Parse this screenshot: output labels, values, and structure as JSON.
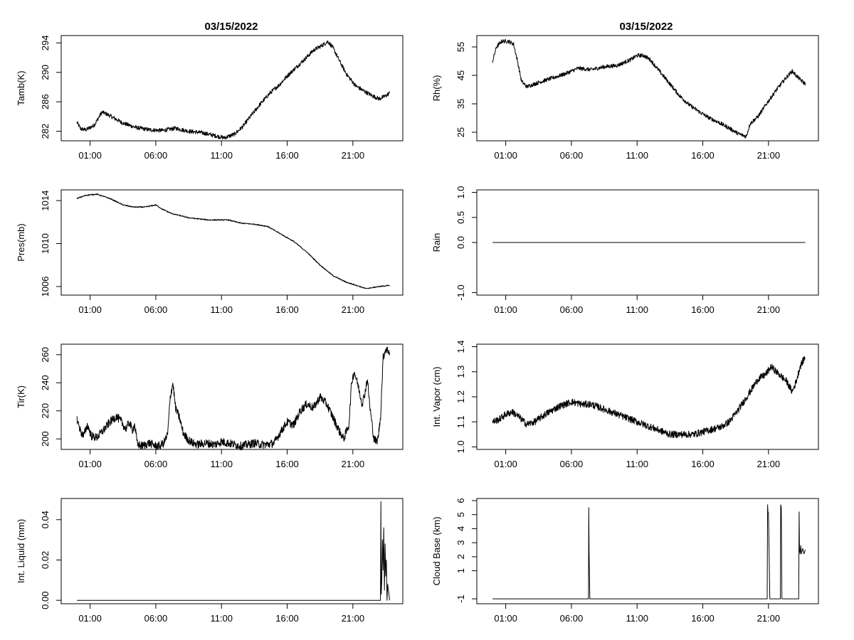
{
  "page": {
    "titles": [
      "03/15/2022",
      "03/15/2022"
    ],
    "x_ticks": [
      "01:00",
      "06:00",
      "11:00",
      "16:00",
      "21:00"
    ],
    "line_color": "#000000",
    "background": "#ffffff"
  },
  "chart_data": [
    {
      "id": "tamb",
      "type": "line",
      "ylabel": "Tamb(K)",
      "ylim": [
        280.7,
        295
      ],
      "yticks": [
        282,
        286,
        290,
        294
      ],
      "x_hours": [
        0,
        0.3,
        0.7,
        1.3,
        1.9,
        2.3,
        2.8,
        3.5,
        4.5,
        5.5,
        6.5,
        7.5,
        8.5,
        9.5,
        10.5,
        11.2,
        12,
        12.6,
        13.2,
        14,
        14.7,
        15.4,
        16,
        16.7,
        17.4,
        18,
        18.6,
        19.1,
        19.5,
        20,
        20.5,
        21.2,
        21.8,
        22.5,
        23,
        23.5,
        23.8
      ],
      "y": [
        283.2,
        282.3,
        282.2,
        282.8,
        284.6,
        284.3,
        283.8,
        283.1,
        282.5,
        282.2,
        282.1,
        282.4,
        282.0,
        281.8,
        281.4,
        281.1,
        281.6,
        282.6,
        284.0,
        285.8,
        287.2,
        288.3,
        289.5,
        290.7,
        291.9,
        293.0,
        293.6,
        294.2,
        293.3,
        291.5,
        289.8,
        288.2,
        287.5,
        286.8,
        286.4,
        286.8,
        287.2
      ],
      "noise": 0.28
    },
    {
      "id": "rh",
      "type": "line",
      "ylabel": "Rh(%)",
      "ylim": [
        22,
        59
      ],
      "yticks": [
        25,
        35,
        45,
        55
      ],
      "x_hours": [
        0,
        0.3,
        0.7,
        1.2,
        1.6,
        1.9,
        2.2,
        2.6,
        3.5,
        4.5,
        5.5,
        6.5,
        7.5,
        8.5,
        9.5,
        10.5,
        11,
        11.5,
        12,
        12.7,
        13.5,
        14.2,
        15,
        15.8,
        16.5,
        17.2,
        18,
        18.7,
        19.3,
        19.6,
        20.2,
        21,
        21.7,
        22.4,
        22.8,
        23.3,
        23.8
      ],
      "y": [
        50,
        55,
        57,
        57,
        56,
        50,
        43,
        41,
        42.5,
        44,
        45.5,
        47.5,
        47,
        48,
        48.5,
        50.5,
        52,
        52,
        50.5,
        46.5,
        42,
        38,
        34.5,
        32,
        30,
        28.5,
        26.5,
        24.5,
        23.5,
        28,
        30.5,
        36,
        40.5,
        44.5,
        46.5,
        44,
        42
      ],
      "noise": 0.7
    },
    {
      "id": "pres",
      "type": "line",
      "ylabel": "Pres(mb)",
      "ylim": [
        1005.2,
        1015.0
      ],
      "yticks": [
        1006,
        1010,
        1014
      ],
      "x_hours": [
        0,
        0.7,
        1.5,
        2.5,
        3.5,
        4.3,
        5.2,
        6,
        6.5,
        7.2,
        8.5,
        10,
        11.5,
        12.5,
        13.5,
        14.5,
        15.5,
        16.5,
        17.5,
        18.5,
        19.5,
        20.5,
        21.3,
        22,
        22.5,
        23,
        23.8
      ],
      "y": [
        1014.2,
        1014.5,
        1014.6,
        1014.2,
        1013.6,
        1013.4,
        1013.4,
        1013.6,
        1013.2,
        1012.8,
        1012.4,
        1012.2,
        1012.2,
        1011.9,
        1011.8,
        1011.6,
        1010.9,
        1010.2,
        1009.2,
        1008.0,
        1007.0,
        1006.4,
        1006.1,
        1005.8,
        1005.9,
        1006.0,
        1006.1
      ],
      "noise": 0.05
    },
    {
      "id": "rain",
      "type": "line",
      "ylabel": "Rain",
      "ylim": [
        -1.05,
        1.05
      ],
      "yticks": [
        -1.0,
        0.0,
        0.5,
        1.0
      ],
      "x_hours": [
        0,
        23.8
      ],
      "y": [
        0,
        0
      ],
      "noise": 0
    },
    {
      "id": "tir",
      "type": "line",
      "ylabel": "Tir(K)",
      "ylim": [
        192.5,
        267.5
      ],
      "yticks": [
        200,
        220,
        240,
        260
      ],
      "x_hours": [
        0,
        0.3,
        0.5,
        0.8,
        1.1,
        1.5,
        2,
        2.5,
        3,
        3.4,
        3.7,
        4,
        4.2,
        4.4,
        4.6,
        5,
        5.5,
        6,
        6.3,
        6.6,
        6.9,
        7.1,
        7.3,
        7.5,
        7.8,
        8.1,
        8.4,
        8.8,
        9.2,
        9.8,
        10.5,
        11,
        11.5,
        12,
        12.5,
        13,
        13.5,
        14,
        14.5,
        15,
        15.5,
        16,
        16.5,
        17,
        17.5,
        18,
        18.5,
        19,
        19.5,
        20,
        20.3,
        20.7,
        20.9,
        21.1,
        21.4,
        21.7,
        21.9,
        22.1,
        22.3,
        22.6,
        22.8,
        22.9,
        23.1,
        23.3,
        23.5,
        23.8
      ],
      "y": [
        214,
        205,
        202,
        210,
        202,
        201,
        206,
        212,
        216,
        212,
        207,
        212,
        206,
        210,
        196,
        195,
        197,
        195,
        195,
        197,
        203,
        230,
        240,
        222,
        215,
        204,
        200,
        197,
        196,
        197,
        196,
        198,
        197,
        196,
        195,
        196,
        197,
        196,
        196,
        197,
        205,
        212,
        210,
        220,
        225,
        222,
        230,
        225,
        215,
        205,
        200,
        210,
        240,
        248,
        238,
        225,
        232,
        243,
        222,
        200,
        198,
        200,
        215,
        258,
        264,
        262
      ],
      "noise": 3
    },
    {
      "id": "vapor",
      "type": "line",
      "ylabel": "Int. Vapor (cm)",
      "ylim": [
        0.99,
        1.41
      ],
      "yticks": [
        1.0,
        1.1,
        1.2,
        1.3,
        1.4
      ],
      "x_hours": [
        0,
        0.5,
        1,
        1.5,
        2,
        2.6,
        3.2,
        4,
        5,
        6,
        6.8,
        7.5,
        8.5,
        9.5,
        10.5,
        11.5,
        12.5,
        13.5,
        14.5,
        15.3,
        16,
        16.7,
        17.4,
        18,
        18.6,
        19.1,
        19.6,
        20.2,
        20.8,
        21.2,
        21.6,
        22,
        22.4,
        22.8,
        23.1,
        23.4,
        23.8
      ],
      "y": [
        1.1,
        1.11,
        1.13,
        1.14,
        1.12,
        1.09,
        1.1,
        1.13,
        1.16,
        1.18,
        1.17,
        1.17,
        1.15,
        1.13,
        1.11,
        1.09,
        1.07,
        1.05,
        1.05,
        1.05,
        1.06,
        1.07,
        1.08,
        1.1,
        1.14,
        1.18,
        1.22,
        1.27,
        1.29,
        1.32,
        1.3,
        1.28,
        1.26,
        1.22,
        1.26,
        1.32,
        1.36
      ],
      "noise": 0.014
    },
    {
      "id": "liquid",
      "type": "line",
      "ylabel": "Int. Liquid (mm)",
      "ylim": [
        -0.0017,
        0.0505
      ],
      "yticks": [
        0.0,
        0.02,
        0.04
      ],
      "x_hours": [
        0,
        23.0,
        23.1,
        23.13,
        23.16,
        23.2,
        23.25,
        23.3,
        23.35,
        23.4,
        23.45,
        23.5,
        23.55,
        23.6,
        23.65,
        23.8
      ],
      "y": [
        0,
        0,
        0,
        0.049,
        0.003,
        0.01,
        0.03,
        0.015,
        0.036,
        0.005,
        0.028,
        0.012,
        0.02,
        0.0,
        0.008,
        0
      ],
      "noise": 0
    },
    {
      "id": "cloud",
      "type": "line",
      "ylabel": "Cloud Base (km)",
      "ylim": [
        -1.35,
        6.15
      ],
      "yticks": [
        -1,
        1,
        2,
        3,
        4,
        5,
        6
      ],
      "x_hours": [
        0,
        7.3,
        7.32,
        7.35,
        7.4,
        20.9,
        20.93,
        20.96,
        21.0,
        21.05,
        21.1,
        21.13,
        21.9,
        21.93,
        21.97,
        22.02,
        22.06,
        23.3,
        23.33,
        23.36,
        23.4,
        23.45,
        23.5,
        23.6,
        23.7,
        23.8
      ],
      "y": [
        -1,
        -1,
        5.5,
        2.2,
        -1,
        -1,
        5.7,
        5.2,
        5.1,
        2.0,
        -1,
        -1,
        -1,
        5.7,
        5.5,
        -1,
        -1,
        -1,
        5.2,
        2.5,
        2.2,
        2.8,
        2.2,
        2.6,
        2.2,
        2.5
      ],
      "noise": 0
    }
  ]
}
